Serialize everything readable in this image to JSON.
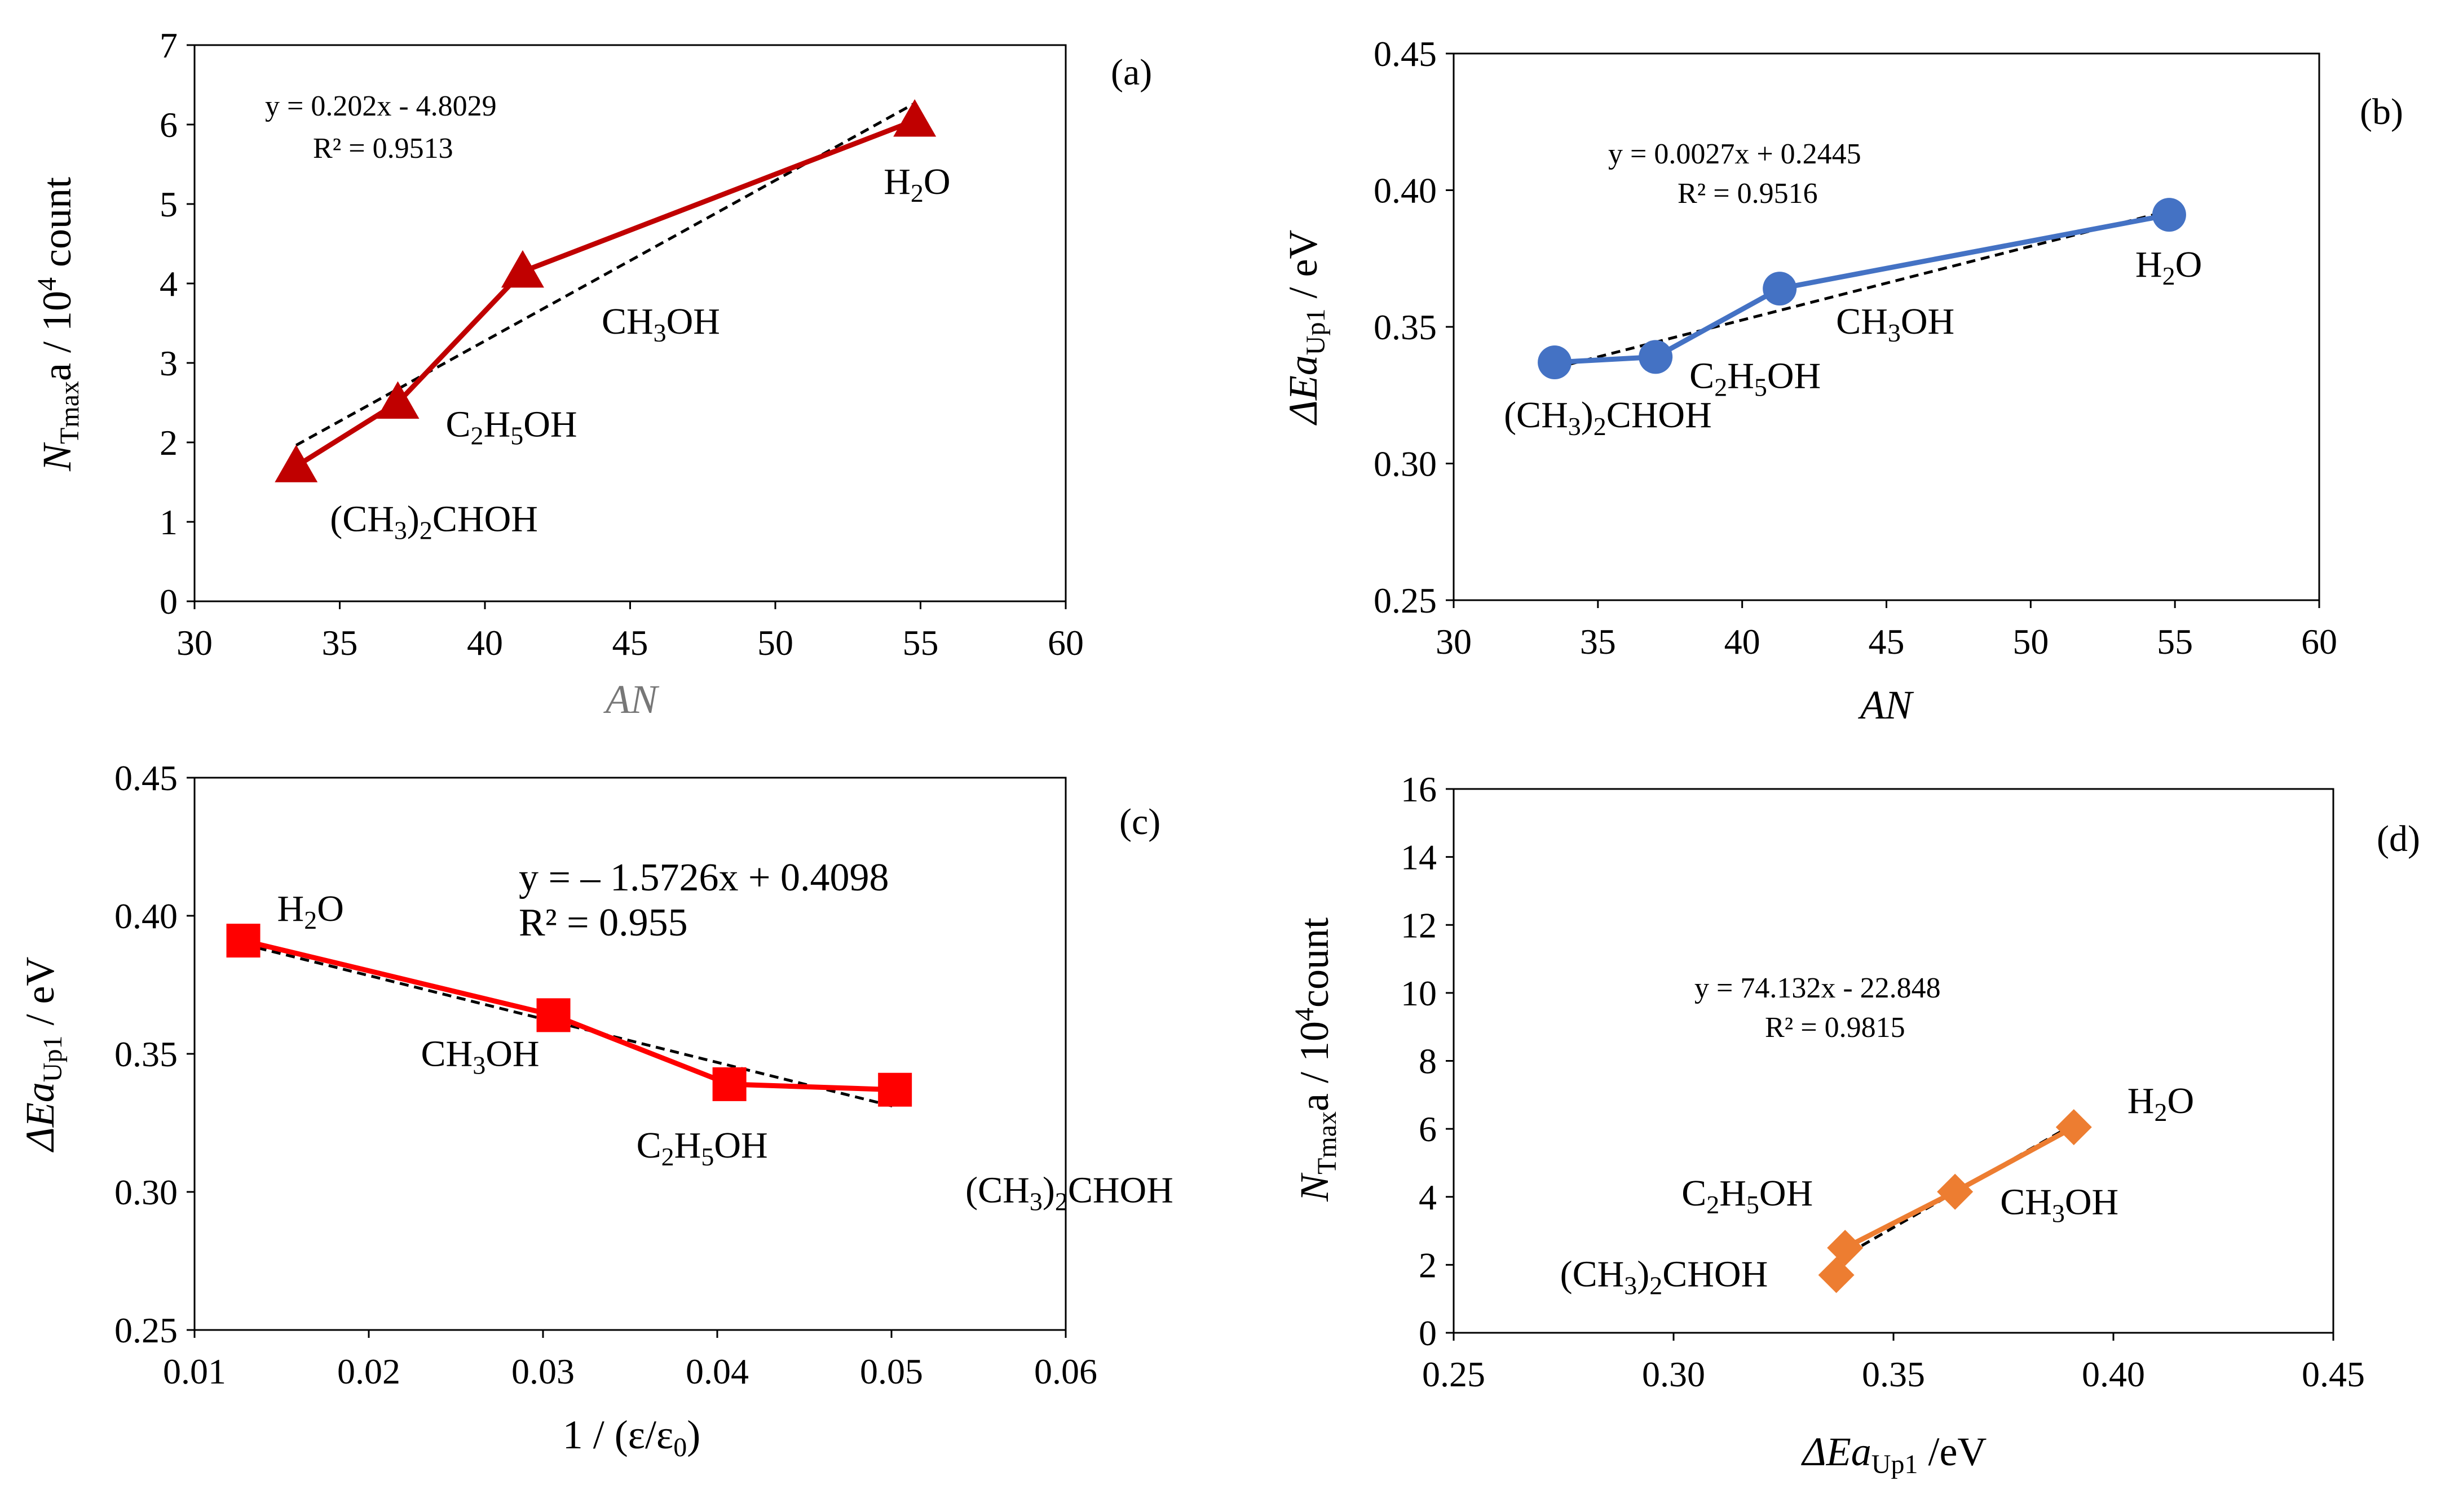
{
  "chart_data": [
    {
      "id": "a",
      "type": "line",
      "panel_label": "(a)",
      "xlabel": "AN",
      "ylabel_parts": [
        "N",
        "Tmax",
        "a / 10",
        "4",
        " count"
      ],
      "xlim": [
        30,
        60
      ],
      "ylim": [
        0,
        7
      ],
      "xticks": [
        30,
        35,
        40,
        45,
        50,
        55,
        60
      ],
      "yticks": [
        0,
        1,
        2,
        3,
        4,
        5,
        6,
        7
      ],
      "tick_decimals_x": 0,
      "tick_decimals_y": 0,
      "marker": "triangle",
      "color": "#c00000",
      "series": [
        {
          "x": [
            33.5,
            37.0,
            41.3,
            54.8
          ],
          "y": [
            1.7,
            2.5,
            4.15,
            6.05
          ]
        }
      ],
      "trendline": {
        "slope": 0.202,
        "intercept": -4.8029,
        "x_range": [
          33.5,
          54.8
        ]
      },
      "equation": "y = 0.202x - 4.8029",
      "r2": "R² = 0.9513",
      "point_labels": [
        {
          "sub": [
            "(CH",
            "3",
            ")",
            "2",
            "CHOH"
          ],
          "x": 33.5,
          "y": 1.7
        },
        {
          "sub": [
            "C",
            "2",
            "H",
            "5",
            "OH"
          ],
          "x": 37.0,
          "y": 2.5
        },
        {
          "sub": [
            "CH",
            "3",
            "OH"
          ],
          "x": 41.3,
          "y": 4.15
        },
        {
          "sub": [
            "H",
            "2",
            "O"
          ],
          "x": 54.8,
          "y": 6.05
        }
      ]
    },
    {
      "id": "b",
      "type": "line",
      "panel_label": "(b)",
      "xlabel": "AN",
      "ylabel_parts": [
        "ΔEa",
        "Up1",
        " / eV"
      ],
      "xlim": [
        30,
        60
      ],
      "ylim": [
        0.25,
        0.45
      ],
      "xticks": [
        30,
        35,
        40,
        45,
        50,
        55,
        60
      ],
      "yticks": [
        0.25,
        0.3,
        0.35,
        0.4,
        0.45
      ],
      "tick_decimals_x": 0,
      "tick_decimals_y": 2,
      "marker": "circle",
      "color": "#4472c4",
      "series": [
        {
          "x": [
            33.5,
            37.0,
            41.3,
            54.8
          ],
          "y": [
            0.337,
            0.339,
            0.364,
            0.391
          ]
        }
      ],
      "trendline": {
        "slope": 0.0027,
        "intercept": 0.2445,
        "x_range": [
          33.5,
          54.8
        ]
      },
      "equation": "y = 0.0027x + 0.2445",
      "r2": "R² = 0.9516",
      "point_labels": [
        {
          "sub": [
            "(CH",
            "3",
            ")",
            "2",
            "CHOH"
          ],
          "x": 33.5,
          "y": 0.337
        },
        {
          "sub": [
            "C",
            "2",
            "H",
            "5",
            "OH"
          ],
          "x": 37.0,
          "y": 0.339
        },
        {
          "sub": [
            "CH",
            "3",
            "OH"
          ],
          "x": 41.3,
          "y": 0.364
        },
        {
          "sub": [
            "H",
            "2",
            "O"
          ],
          "x": 54.8,
          "y": 0.391
        }
      ]
    },
    {
      "id": "c",
      "type": "line",
      "panel_label": "(c)",
      "xlabel": "1 / (ε/ε0)",
      "xlabel_parts": [
        "1 / (ε/ε",
        "0",
        ")"
      ],
      "ylabel_parts": [
        "ΔEa",
        "Up1",
        " / eV"
      ],
      "xlim": [
        0.01,
        0.06
      ],
      "ylim": [
        0.25,
        0.45
      ],
      "xticks": [
        0.01,
        0.02,
        0.03,
        0.04,
        0.05,
        0.06
      ],
      "yticks": [
        0.25,
        0.3,
        0.35,
        0.4,
        0.45
      ],
      "tick_decimals_x": 2,
      "tick_decimals_y": 2,
      "marker": "square",
      "color": "#ff0000",
      "series": [
        {
          "x": [
            0.0128,
            0.0306,
            0.0407,
            0.0502
          ],
          "y": [
            0.391,
            0.364,
            0.339,
            0.337
          ]
        }
      ],
      "trendline": {
        "slope": -1.5726,
        "intercept": 0.4098,
        "x_range": [
          0.0128,
          0.0502
        ]
      },
      "equation": "y = – 1.5726x + 0.4098",
      "r2": "R² = 0.955",
      "point_labels": [
        {
          "sub": [
            "H",
            "2",
            "O"
          ],
          "x": 0.0128,
          "y": 0.391
        },
        {
          "sub": [
            "CH",
            "3",
            "OH"
          ],
          "x": 0.0306,
          "y": 0.364
        },
        {
          "sub": [
            "C",
            "2",
            "H",
            "5",
            "OH"
          ],
          "x": 0.0407,
          "y": 0.339
        },
        {
          "sub": [
            "(CH",
            "3",
            ")",
            "2",
            "CHOH"
          ],
          "x": 0.0502,
          "y": 0.337
        }
      ]
    },
    {
      "id": "d",
      "type": "line",
      "panel_label": "(d)",
      "xlabel_parts": [
        "ΔEa",
        "Up1",
        " /eV"
      ],
      "ylabel_parts": [
        "N",
        "Tmax",
        "a / 10",
        "4",
        "count"
      ],
      "xlim": [
        0.25,
        0.45
      ],
      "ylim": [
        0,
        16
      ],
      "xticks": [
        0.25,
        0.3,
        0.35,
        0.4,
        0.45
      ],
      "yticks": [
        0,
        2,
        4,
        6,
        8,
        10,
        12,
        14,
        16
      ],
      "tick_decimals_x": 2,
      "tick_decimals_y": 0,
      "marker": "diamond",
      "color": "#ed7d31",
      "series": [
        {
          "x": [
            0.337,
            0.339,
            0.364,
            0.391
          ],
          "y": [
            1.7,
            2.5,
            4.15,
            6.05
          ]
        }
      ],
      "trendline": {
        "slope": 74.132,
        "intercept": -22.848,
        "x_range": [
          0.337,
          0.391
        ]
      },
      "equation": "y = 74.132x - 22.848",
      "r2": "R² = 0.9815",
      "point_labels": [
        {
          "sub": [
            "(CH",
            "3",
            ")",
            "2",
            "CHOH"
          ],
          "x": 0.337,
          "y": 1.7
        },
        {
          "sub": [
            "C",
            "2",
            "H",
            "5",
            "OH"
          ],
          "x": 0.339,
          "y": 2.5
        },
        {
          "sub": [
            "CH",
            "3",
            "OH"
          ],
          "x": 0.364,
          "y": 4.15
        },
        {
          "sub": [
            "H",
            "2",
            "O"
          ],
          "x": 0.391,
          "y": 6.05
        }
      ]
    }
  ]
}
